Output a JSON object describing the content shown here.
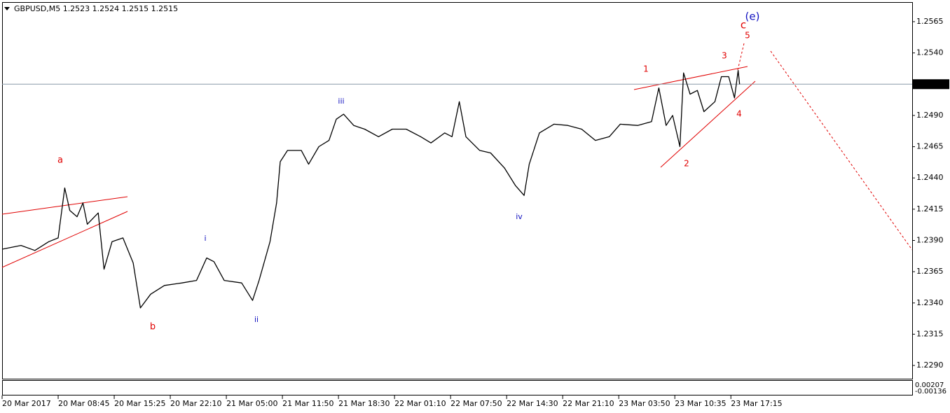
{
  "chart_data": {
    "type": "line",
    "title": "GBPUSD,M5  1.2523 1.2524 1.2515 1.2515",
    "color": "#000000",
    "x": [
      0,
      26,
      45,
      64,
      77,
      86,
      93,
      103,
      111,
      117,
      132,
      140,
      151,
      166,
      180,
      190,
      204,
      223,
      247,
      267,
      281,
      291,
      305,
      329,
      344,
      353,
      368,
      377,
      382,
      392,
      411,
      421,
      435,
      449,
      459,
      469,
      483,
      498,
      517,
      536,
      555,
      575,
      589,
      608,
      618,
      628,
      637,
      656,
      671,
      690,
      705,
      717,
      724,
      738,
      758,
      777,
      796,
      815,
      834,
      849,
      873,
      892,
      902,
      912,
      921,
      931,
      936,
      945,
      955,
      964,
      979,
      988,
      998,
      1006,
      1011,
      1013
    ],
    "values": [
      1.2383,
      1.2386,
      1.2382,
      1.2389,
      1.2392,
      1.2432,
      1.2414,
      1.2409,
      1.242,
      1.2403,
      1.2412,
      1.2367,
      1.2389,
      1.2392,
      1.2372,
      1.2336,
      1.2347,
      1.2354,
      1.2356,
      1.2358,
      1.2376,
      1.2373,
      1.2358,
      1.2356,
      1.2342,
      1.2358,
      1.2389,
      1.242,
      1.2453,
      1.2462,
      1.2462,
      1.2451,
      1.2465,
      1.247,
      1.2487,
      1.2491,
      1.2482,
      1.2479,
      1.2473,
      1.2479,
      1.2479,
      1.2473,
      1.2468,
      1.2476,
      1.2473,
      1.2501,
      1.2473,
      1.2462,
      1.246,
      1.2448,
      1.2434,
      1.2426,
      1.2451,
      1.2476,
      1.2483,
      1.2482,
      1.2479,
      1.247,
      1.2473,
      1.2483,
      1.2482,
      1.2485,
      1.2512,
      1.2482,
      1.249,
      1.2465,
      1.2524,
      1.2507,
      1.251,
      1.2493,
      1.2501,
      1.2521,
      1.2521,
      1.2504,
      1.2526,
      1.2515
    ],
    "xlim": [
      0,
      1250
    ],
    "xticks": [
      {
        "value": 0,
        "label": "20 Mar 2017"
      },
      {
        "value": 77,
        "label": "20 Mar 08:45"
      },
      {
        "value": 154,
        "label": "20 Mar 15:25"
      },
      {
        "value": 231,
        "label": "20 Mar 22:10"
      },
      {
        "value": 308,
        "label": "21 Mar 05:00"
      },
      {
        "value": 385,
        "label": "21 Mar 11:50"
      },
      {
        "value": 462,
        "label": "21 Mar 18:30"
      },
      {
        "value": 539,
        "label": "22 Mar 01:10"
      },
      {
        "value": 616,
        "label": "22 Mar 07:50"
      },
      {
        "value": 693,
        "label": "22 Mar 14:30"
      },
      {
        "value": 770,
        "label": "22 Mar 21:10"
      },
      {
        "value": 847,
        "label": "23 Mar 03:50"
      },
      {
        "value": 924,
        "label": "23 Mar 10:35"
      },
      {
        "value": 1001,
        "label": "23 Mar 17:15"
      }
    ],
    "ylim": [
      1.22794,
      1.25801
    ],
    "yticks": [
      1.2565,
      {
        "value": 1.254,
        "label": "1.2540"
      },
      {
        "value": 1.249,
        "label": "1.2490"
      },
      1.2465,
      {
        "value": 1.244,
        "label": "1.2440"
      },
      1.2415,
      {
        "value": 1.239,
        "label": "1.2390"
      },
      1.2365,
      {
        "value": 1.234,
        "label": "1.2340"
      },
      1.2315,
      {
        "value": 1.229,
        "label": "1.2290"
      }
    ],
    "last_price": 1.2515,
    "annotations": [
      "a",
      "b",
      "i",
      "ii",
      "iii",
      "iv",
      "1",
      "2",
      "3",
      "4",
      "5",
      "c",
      "(e)"
    ],
    "subwindow_labels": [
      "0.00207",
      "-0.00136"
    ]
  }
}
